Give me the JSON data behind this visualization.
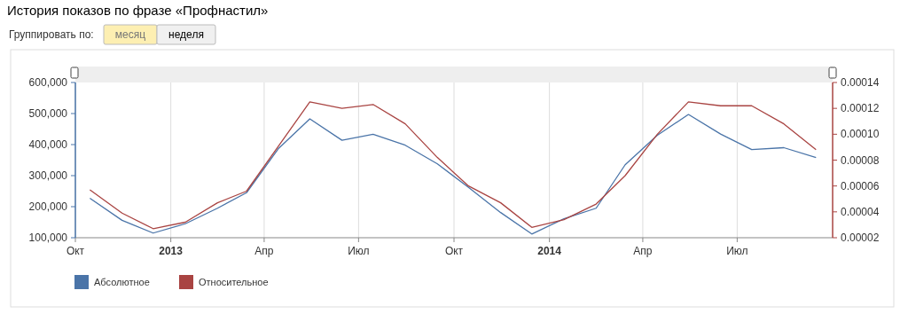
{
  "chart_data": {
    "type": "line",
    "title": "История показов по фразе «Профнастил»",
    "annotations": [
      "Группировать по:",
      "месяц",
      "неделя"
    ],
    "x": [
      "2012-10-15",
      "2012-11-15",
      "2012-12-15",
      "2013-01-15",
      "2013-02-15",
      "2013-03-15",
      "2013-04-15",
      "2013-05-15",
      "2013-06-15",
      "2013-07-15",
      "2013-08-15",
      "2013-09-15",
      "2013-10-15",
      "2013-11-15",
      "2013-12-15",
      "2014-01-15",
      "2014-02-15",
      "2014-03-15",
      "2014-04-15",
      "2014-05-15",
      "2014-06-15",
      "2014-07-15",
      "2014-08-15",
      "2014-09-15"
    ],
    "series": [
      {
        "name": "Абсолютное",
        "color": "#4a74a8",
        "values": [
          227000,
          156000,
          115000,
          145000,
          195000,
          245000,
          388000,
          483000,
          414000,
          433000,
          398000,
          338000,
          262000,
          181000,
          112000,
          161000,
          195000,
          335000,
          430000,
          497000,
          434000,
          384000,
          390000,
          358000
        ]
      },
      {
        "name": "Относительное",
        "color": "#a94442",
        "axis": "y2",
        "values": [
          5.7e-05,
          3.9e-05,
          2.7e-05,
          3.2e-05,
          4.7e-05,
          5.6e-05,
          9.1e-05,
          0.000125,
          0.00012,
          0.000123,
          0.000108,
          8.2e-05,
          6e-05,
          4.7e-05,
          2.8e-05,
          3.4e-05,
          4.6e-05,
          6.8e-05,
          0.0001,
          0.000125,
          0.000122,
          0.000122,
          0.000108,
          8.8e-05
        ]
      }
    ],
    "xlim": [
      "2012-10-01",
      "2014-10-01"
    ],
    "xticks": [
      {
        "value": "2012-10-01",
        "label": "Окт"
      },
      {
        "value": "2013-01-01",
        "label": "2013"
      },
      {
        "value": "2013-04-01",
        "label": "Апр"
      },
      {
        "value": "2013-07-01",
        "label": "Июл"
      },
      {
        "value": "2013-10-01",
        "label": "Окт"
      },
      {
        "value": "2014-01-01",
        "label": "2014"
      },
      {
        "value": "2014-04-01",
        "label": "Апр"
      },
      {
        "value": "2014-07-01",
        "label": "Июл"
      }
    ],
    "ylim": [
      100000,
      600000
    ],
    "yticks": [
      {
        "value": 100000,
        "label": "100,000"
      },
      {
        "value": 200000,
        "label": "200,000"
      },
      {
        "value": 300000,
        "label": "300,000"
      },
      {
        "value": 400000,
        "label": "400,000"
      },
      {
        "value": 500000,
        "label": "500,000"
      },
      {
        "value": 600000,
        "label": "600,000"
      }
    ],
    "y2lim": [
      2e-05,
      0.00014
    ],
    "y2ticks": [
      {
        "value": 2e-05,
        "label": "0.00002"
      },
      {
        "value": 4e-05,
        "label": "0.00004"
      },
      {
        "value": 6e-05,
        "label": "0.00006"
      },
      {
        "value": 8e-05,
        "label": "0.00008"
      },
      {
        "value": 0.0001,
        "label": "0.00010"
      },
      {
        "value": 0.00012,
        "label": "0.00012"
      },
      {
        "value": 0.00014,
        "label": "0.00014"
      }
    ],
    "grid": "x",
    "legend": "bottom left",
    "marker": "none",
    "line_style": "solid"
  }
}
